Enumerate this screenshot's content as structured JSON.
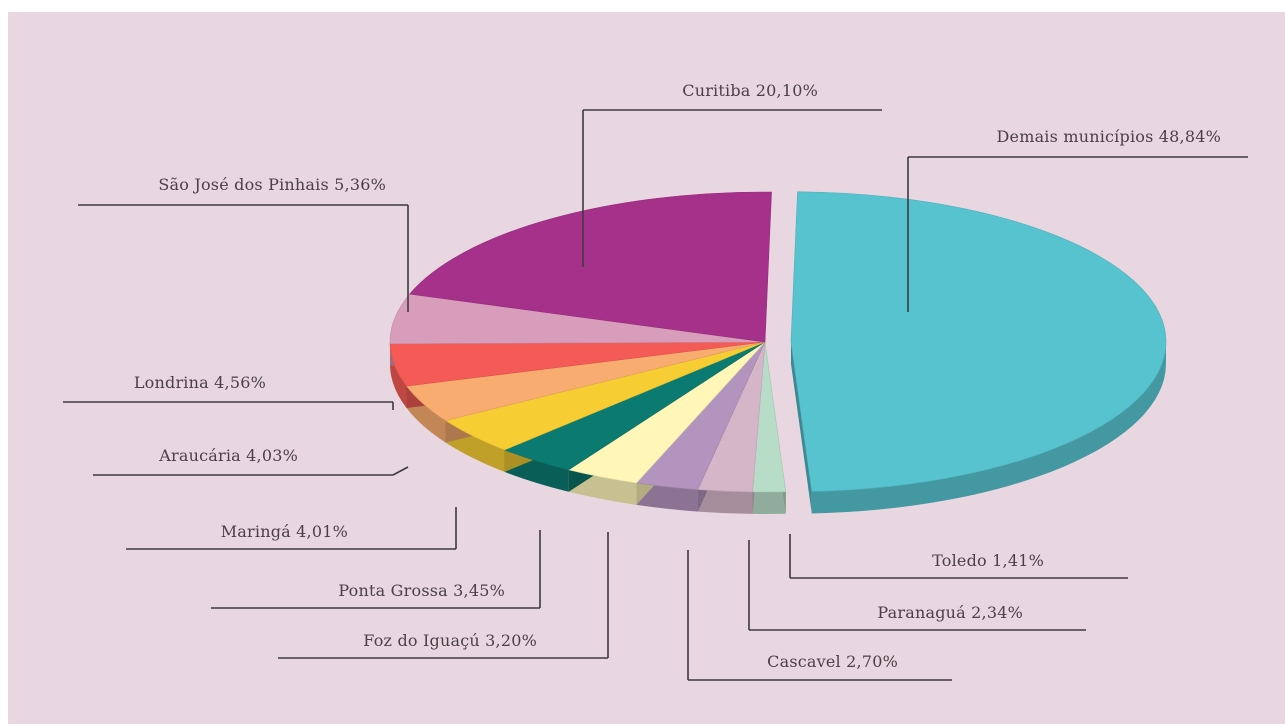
{
  "chart_data": {
    "type": "pie",
    "title": "",
    "series": [
      {
        "categories": [
          "Demais municípios",
          "Toledo",
          "Paranaguá",
          "Cascavel",
          "Foz do Iguaçú",
          "Ponta Grossa",
          "Maringá",
          "Araucária",
          "Londrina",
          "São José dos Pinhais",
          "Curitiba"
        ],
        "values": [
          48.84,
          1.41,
          2.34,
          2.7,
          3.2,
          3.45,
          4.01,
          4.03,
          4.56,
          5.36,
          20.1
        ]
      }
    ],
    "labels": [
      "Demais municípios 48,84%",
      "Toledo 1,41%",
      "Paranaguá 2,34%",
      "Cascavel 2,70%",
      "Foz do Iguaçú 3,20%",
      "Ponta Grossa 3,45%",
      "Maringá 4,01%",
      "Araucária 4,03%",
      "Londrina 4,56%",
      "São José dos Pinhais 5,36%",
      "Curitiba 20,10%"
    ],
    "colors": [
      "#57c3cf",
      "#b7dcc8",
      "#d5b5c8",
      "#b394be",
      "#fff6b8",
      "#0b7a70",
      "#f6cd33",
      "#f9ac70",
      "#f45b56",
      "#d89dba",
      "#a5318a"
    ],
    "exploded": [
      "Demais municípios"
    ],
    "style": "3d-tilted"
  }
}
